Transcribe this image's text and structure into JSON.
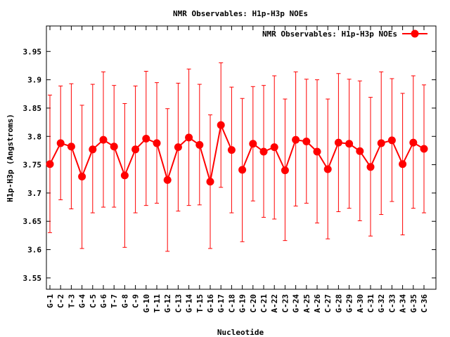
{
  "chart_data": {
    "type": "line",
    "title": "NMR Observables: H1p-H3p NOEs",
    "xlabel": "Nucleotide",
    "ylabel": "H1p-H3p (Angstroms)",
    "ylim": [
      3.53,
      3.995
    ],
    "yticks": [
      3.55,
      3.6,
      3.65,
      3.7,
      3.75,
      3.8,
      3.85,
      3.9,
      3.95
    ],
    "ytick_labels": [
      "3.55",
      "3.6",
      "3.65",
      "3.7",
      "3.75",
      "3.8",
      "3.85",
      "3.9",
      "3.95"
    ],
    "grid": false,
    "legend_position": "top-right",
    "series_color": "#ff0000",
    "categories": [
      "G-1",
      "C-2",
      "T-3",
      "G-4",
      "C-5",
      "G-6",
      "T-7",
      "G-8",
      "C-9",
      "G-10",
      "T-11",
      "G-12",
      "C-13",
      "G-14",
      "T-15",
      "G-16",
      "G-17",
      "C-18",
      "G-19",
      "C-20",
      "C-21",
      "A-22",
      "C-23",
      "G-24",
      "A-25",
      "A-26",
      "C-27",
      "G-28",
      "G-29",
      "A-30",
      "C-31",
      "G-32",
      "C-33",
      "A-34",
      "G-35",
      "C-36"
    ],
    "break_after_index": 17,
    "series": [
      {
        "name": "NMR Observables: H1p-H3p NOEs",
        "values": [
          3.751,
          3.788,
          3.782,
          3.729,
          3.777,
          3.794,
          3.782,
          3.731,
          3.777,
          3.796,
          3.788,
          3.723,
          3.781,
          3.798,
          3.785,
          3.72,
          3.82,
          3.776,
          3.741,
          3.787,
          3.773,
          3.781,
          3.74,
          3.794,
          3.791,
          3.773,
          3.742,
          3.789,
          3.787,
          3.774,
          3.746,
          3.788,
          3.793,
          3.751,
          3.789,
          3.778
        ],
        "err_low": [
          3.63,
          3.688,
          3.672,
          3.602,
          3.665,
          3.675,
          3.675,
          3.604,
          3.665,
          3.678,
          3.682,
          3.597,
          3.668,
          3.678,
          3.679,
          3.602,
          3.71,
          3.665,
          3.614,
          3.686,
          3.657,
          3.654,
          3.616,
          3.677,
          3.682,
          3.647,
          3.619,
          3.667,
          3.673,
          3.651,
          3.624,
          3.662,
          3.685,
          3.626,
          3.673,
          3.665
        ],
        "err_high": [
          3.873,
          3.889,
          3.893,
          3.855,
          3.892,
          3.914,
          3.89,
          3.858,
          3.889,
          3.915,
          3.895,
          3.849,
          3.894,
          3.919,
          3.892,
          3.838,
          3.93,
          3.887,
          3.867,
          3.888,
          3.89,
          3.907,
          3.866,
          3.914,
          3.901,
          3.9,
          3.866,
          3.911,
          3.901,
          3.898,
          3.869,
          3.914,
          3.902,
          3.876,
          3.907,
          3.891
        ]
      }
    ]
  }
}
